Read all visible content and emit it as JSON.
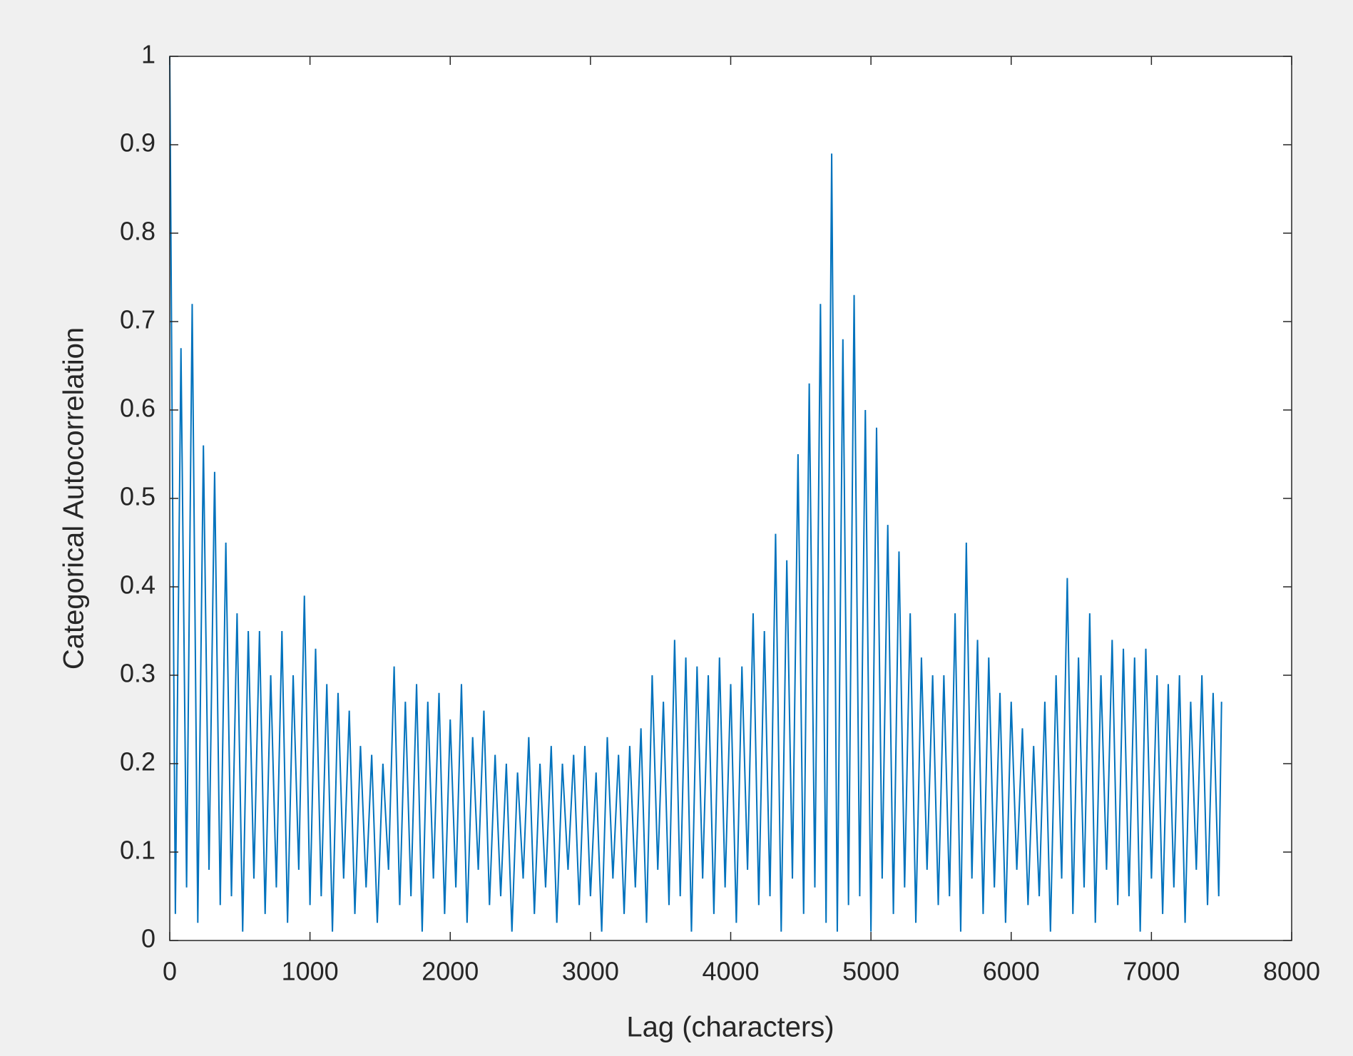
{
  "chart_data": {
    "type": "line",
    "xlabel": "Lag (characters)",
    "ylabel": "Categorical Autocorrelation",
    "color": "#0072bd",
    "xlim": [
      0,
      8000
    ],
    "ylim": [
      0,
      1
    ],
    "xticks": [
      0,
      1000,
      2000,
      3000,
      4000,
      5000,
      6000,
      7000,
      8000
    ],
    "yticks": [
      0,
      0.1,
      0.2,
      0.3,
      0.4,
      0.5,
      0.6,
      0.7,
      0.8,
      0.9,
      1
    ],
    "grid": false,
    "x": [
      0,
      40,
      80,
      120,
      160,
      200,
      240,
      280,
      320,
      360,
      400,
      440,
      480,
      520,
      560,
      600,
      640,
      680,
      720,
      760,
      800,
      840,
      880,
      920,
      960,
      1000,
      1040,
      1080,
      1120,
      1160,
      1200,
      1240,
      1280,
      1320,
      1360,
      1400,
      1440,
      1480,
      1520,
      1560,
      1600,
      1640,
      1680,
      1720,
      1760,
      1800,
      1840,
      1880,
      1920,
      1960,
      2000,
      2040,
      2080,
      2120,
      2160,
      2200,
      2240,
      2280,
      2320,
      2360,
      2400,
      2440,
      2480,
      2520,
      2560,
      2600,
      2640,
      2680,
      2720,
      2760,
      2800,
      2840,
      2880,
      2920,
      2960,
      3000,
      3040,
      3080,
      3120,
      3160,
      3200,
      3240,
      3280,
      3320,
      3360,
      3400,
      3440,
      3480,
      3520,
      3560,
      3600,
      3640,
      3680,
      3720,
      3760,
      3800,
      3840,
      3880,
      3920,
      3960,
      4000,
      4040,
      4080,
      4120,
      4160,
      4200,
      4240,
      4280,
      4320,
      4360,
      4400,
      4440,
      4480,
      4520,
      4560,
      4600,
      4640,
      4680,
      4720,
      4760,
      4800,
      4840,
      4880,
      4920,
      4960,
      5000,
      5040,
      5080,
      5120,
      5160,
      5200,
      5240,
      5280,
      5320,
      5360,
      5400,
      5440,
      5480,
      5520,
      5560,
      5600,
      5640,
      5680,
      5720,
      5760,
      5800,
      5840,
      5880,
      5920,
      5960,
      6000,
      6040,
      6080,
      6120,
      6160,
      6200,
      6240,
      6280,
      6320,
      6360,
      6400,
      6440,
      6480,
      6520,
      6560,
      6600,
      6640,
      6680,
      6720,
      6760,
      6800,
      6840,
      6880,
      6920,
      6960,
      7000,
      7040,
      7080,
      7120,
      7160,
      7200,
      7240,
      7280,
      7320,
      7360,
      7400,
      7440,
      7480,
      7500
    ],
    "values": [
      1.0,
      0.03,
      0.67,
      0.06,
      0.72,
      0.02,
      0.56,
      0.08,
      0.53,
      0.04,
      0.45,
      0.05,
      0.37,
      0.01,
      0.35,
      0.07,
      0.35,
      0.03,
      0.3,
      0.06,
      0.35,
      0.02,
      0.3,
      0.08,
      0.39,
      0.04,
      0.33,
      0.05,
      0.29,
      0.01,
      0.28,
      0.07,
      0.26,
      0.03,
      0.22,
      0.06,
      0.21,
      0.02,
      0.2,
      0.08,
      0.31,
      0.04,
      0.27,
      0.05,
      0.29,
      0.01,
      0.27,
      0.07,
      0.28,
      0.03,
      0.25,
      0.06,
      0.29,
      0.02,
      0.23,
      0.08,
      0.26,
      0.04,
      0.21,
      0.05,
      0.2,
      0.01,
      0.19,
      0.07,
      0.23,
      0.03,
      0.2,
      0.06,
      0.22,
      0.02,
      0.2,
      0.08,
      0.21,
      0.04,
      0.22,
      0.05,
      0.19,
      0.01,
      0.23,
      0.07,
      0.21,
      0.03,
      0.22,
      0.06,
      0.24,
      0.02,
      0.3,
      0.08,
      0.27,
      0.04,
      0.34,
      0.05,
      0.32,
      0.01,
      0.31,
      0.07,
      0.3,
      0.03,
      0.32,
      0.06,
      0.29,
      0.02,
      0.31,
      0.08,
      0.37,
      0.04,
      0.35,
      0.05,
      0.46,
      0.01,
      0.43,
      0.07,
      0.55,
      0.03,
      0.63,
      0.06,
      0.72,
      0.02,
      0.89,
      0.01,
      0.68,
      0.04,
      0.73,
      0.05,
      0.6,
      0.01,
      0.58,
      0.07,
      0.47,
      0.03,
      0.44,
      0.06,
      0.37,
      0.02,
      0.32,
      0.08,
      0.3,
      0.04,
      0.3,
      0.05,
      0.37,
      0.01,
      0.45,
      0.07,
      0.34,
      0.03,
      0.32,
      0.06,
      0.28,
      0.02,
      0.27,
      0.08,
      0.24,
      0.04,
      0.22,
      0.05,
      0.27,
      0.01,
      0.3,
      0.07,
      0.41,
      0.03,
      0.32,
      0.06,
      0.37,
      0.02,
      0.3,
      0.08,
      0.34,
      0.04,
      0.33,
      0.05,
      0.32,
      0.01,
      0.33,
      0.07,
      0.3,
      0.03,
      0.29,
      0.06,
      0.3,
      0.02,
      0.27,
      0.08,
      0.3,
      0.04,
      0.28,
      0.05,
      0.27
    ]
  }
}
